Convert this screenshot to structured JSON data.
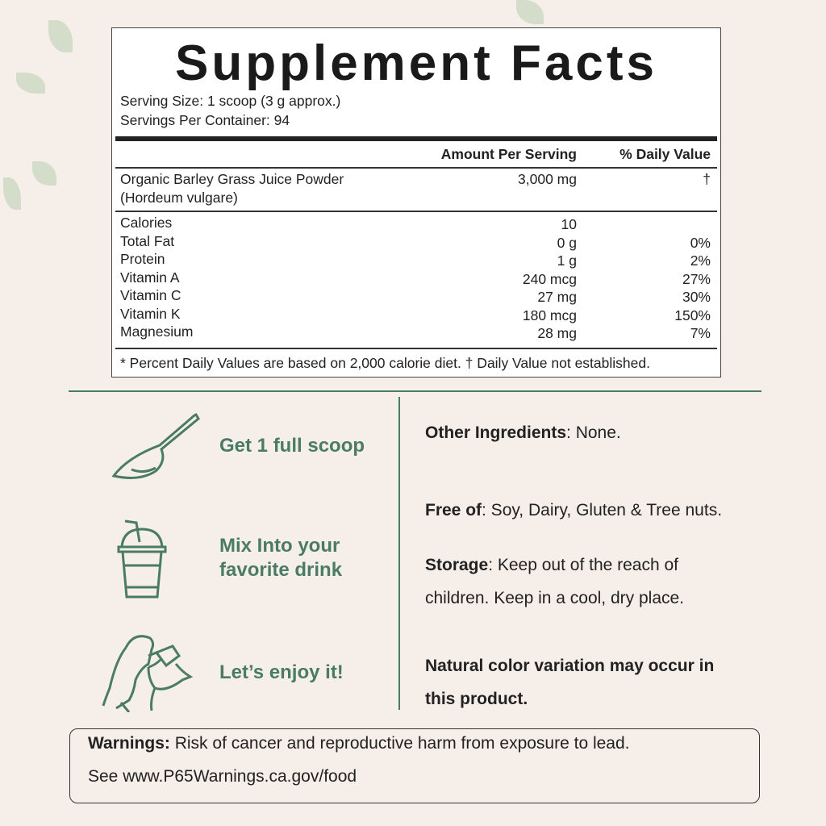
{
  "panel": {
    "title": "Supplement Facts",
    "serving_size": "Serving Size: 1 scoop  (3 g approx.)",
    "servings_per_container": "Servings Per Container: 94",
    "header": {
      "amount": "Amount Per Serving",
      "dv": "% Daily Value"
    },
    "main_ingredient": {
      "name": "Organic Barley Grass Juice Powder",
      "latin": "(Hordeum vulgare)",
      "amount": "3,000 mg",
      "dv": "†"
    },
    "nutrients": [
      {
        "name": "Calories",
        "amount": "10",
        "dv": ""
      },
      {
        "name": "Total Fat",
        "amount": "0 g",
        "dv": "0%"
      },
      {
        "name": "Protein",
        "amount": "1 g",
        "dv": "2%"
      },
      {
        "name": "Vitamin A",
        "amount": "240 mcg",
        "dv": "27%"
      },
      {
        "name": "Vitamin C",
        "amount": "27 mg",
        "dv": "30%"
      },
      {
        "name": "Vitamin K",
        "amount": "180 mcg",
        "dv": "150%"
      },
      {
        "name": "Magnesium",
        "amount": "28 mg",
        "dv": "7%"
      }
    ],
    "footnote": "* Percent Daily Values are based on 2,000 calorie diet. † Daily Value not established."
  },
  "steps": [
    {
      "icon": "scoop-icon",
      "line1": "Get 1 full scoop"
    },
    {
      "icon": "drink-cup-icon",
      "line1": "Mix Into your",
      "line2": "favorite drink"
    },
    {
      "icon": "woman-drinking-icon",
      "line1": "Let’s enjoy it!"
    }
  ],
  "info": {
    "other_label": "Other Ingredients",
    "other_value": ": None.",
    "free_label": "Free of",
    "free_value": ": Soy, Dairy, Gluten & Tree nuts.",
    "storage_label": "Storage",
    "storage_value1": ": Keep out of the reach of",
    "storage_value2": "children. Keep in a cool, dry place.",
    "natural1": "Natural color variation may occur in",
    "natural2": "this product."
  },
  "warning": {
    "label": "Warnings:",
    "text": " Risk of cancer and reproductive harm from exposure to lead.",
    "line2": "See www.P65Warnings.ca.gov/food"
  },
  "colors": {
    "accent": "#4a7c62",
    "background": "#f6eee9"
  }
}
